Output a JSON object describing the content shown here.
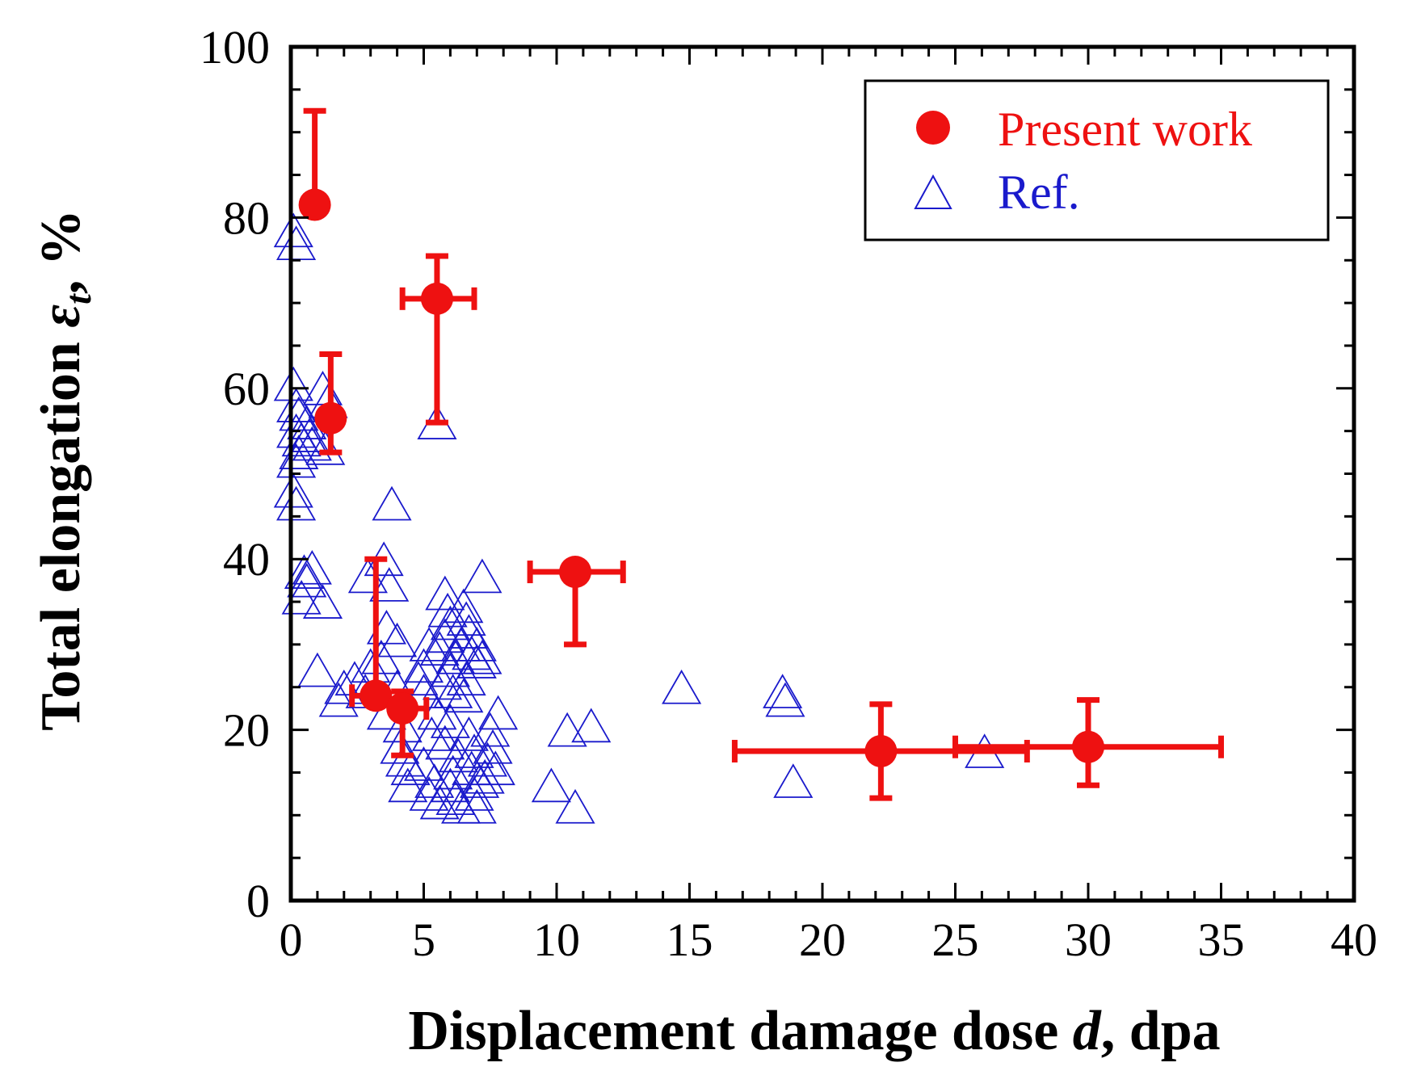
{
  "chart_data": {
    "type": "scatter",
    "xlabel": "Displacement damage dose d, dpa",
    "xlabel_parts": {
      "prefix": "Displacement damage dose ",
      "var": "d",
      "suffix": ", dpa"
    },
    "ylabel": "Total elongation εt, %",
    "ylabel_parts": {
      "prefix": "Total elongation ",
      "var": "ε",
      "sub": "t",
      "suffix": ", %"
    },
    "xlim": [
      0,
      40
    ],
    "ylim": [
      0,
      100
    ],
    "xticks": [
      "0",
      "5",
      "10",
      "15",
      "20",
      "25",
      "30",
      "35",
      "40"
    ],
    "yticks": [
      "0",
      "20",
      "40",
      "60",
      "80",
      "100"
    ],
    "legend_position": "top-right",
    "colors": {
      "present": "#ee1111",
      "ref": "#1a1acc",
      "axis": "#000000"
    },
    "series": [
      {
        "name": "Present work",
        "marker": "filled-circle",
        "color": "#ee1111",
        "points": [
          {
            "x": 0.9,
            "y": 81.5,
            "y_lo": null,
            "y_hi": 92.5,
            "x_lo": null,
            "x_hi": null
          },
          {
            "x": 1.5,
            "y": 56.5,
            "y_lo": 52.5,
            "y_hi": 64.0,
            "x_lo": null,
            "x_hi": null
          },
          {
            "x": 5.5,
            "y": 70.5,
            "y_lo": 56.0,
            "y_hi": 75.5,
            "x_lo": 4.2,
            "x_hi": 6.9
          },
          {
            "x": 10.7,
            "y": 38.5,
            "y_lo": 30.0,
            "y_hi": null,
            "x_lo": 9.0,
            "x_hi": 12.5
          },
          {
            "x": 3.2,
            "y": 24.0,
            "y_lo": null,
            "y_hi": 40.0,
            "x_lo": 2.3,
            "x_hi": null
          },
          {
            "x": 4.2,
            "y": 22.5,
            "y_lo": 17.0,
            "y_hi": 24.5,
            "x_lo": null,
            "x_hi": 5.1
          },
          {
            "x": 22.2,
            "y": 17.5,
            "y_lo": 12.0,
            "y_hi": 23.0,
            "x_lo": 16.7,
            "x_hi": 27.7
          },
          {
            "x": 30.0,
            "y": 18.0,
            "y_lo": 13.5,
            "y_hi": 23.5,
            "x_lo": 25.0,
            "x_hi": 35.0
          }
        ]
      },
      {
        "name": "Ref.",
        "marker": "open-triangle",
        "color": "#1a1acc",
        "points": [
          [
            0.1,
            78.5
          ],
          [
            0.2,
            77.0
          ],
          [
            0.1,
            60.5
          ],
          [
            0.2,
            58.0
          ],
          [
            0.3,
            57.0
          ],
          [
            0.2,
            55.0
          ],
          [
            0.4,
            54.0
          ],
          [
            0.3,
            52.5
          ],
          [
            0.2,
            51.5
          ],
          [
            0.1,
            48.0
          ],
          [
            0.2,
            46.5
          ],
          [
            0.6,
            56.0
          ],
          [
            0.7,
            54.5
          ],
          [
            0.8,
            53.5
          ],
          [
            1.2,
            60.0
          ],
          [
            1.4,
            58.5
          ],
          [
            1.3,
            53.0
          ],
          [
            0.5,
            38.5
          ],
          [
            0.6,
            37.5
          ],
          [
            0.8,
            39.0
          ],
          [
            0.4,
            35.5
          ],
          [
            1.2,
            35.0
          ],
          [
            1.0,
            27.0
          ],
          [
            1.8,
            23.5
          ],
          [
            2.0,
            25.0
          ],
          [
            2.4,
            26.0
          ],
          [
            2.8,
            24.5
          ],
          [
            3.0,
            27.5
          ],
          [
            2.9,
            38.0
          ],
          [
            3.8,
            46.5
          ],
          [
            3.5,
            40.0
          ],
          [
            3.7,
            37.0
          ],
          [
            3.6,
            32.0
          ],
          [
            4.0,
            30.5
          ],
          [
            3.4,
            28.5
          ],
          [
            4.0,
            25.0
          ],
          [
            3.6,
            22.0
          ],
          [
            4.2,
            20.5
          ],
          [
            4.1,
            18.0
          ],
          [
            4.3,
            16.5
          ],
          [
            4.5,
            15.5
          ],
          [
            4.4,
            13.5
          ],
          [
            4.8,
            26.0
          ],
          [
            5.0,
            27.5
          ],
          [
            5.2,
            30.0
          ],
          [
            5.0,
            24.5
          ],
          [
            5.5,
            22.0
          ],
          [
            5.3,
            19.5
          ],
          [
            5.0,
            16.0
          ],
          [
            5.4,
            14.0
          ],
          [
            5.2,
            12.5
          ],
          [
            5.6,
            11.5
          ],
          [
            5.5,
            56.0
          ],
          [
            5.8,
            36.0
          ],
          [
            5.9,
            34.0
          ],
          [
            6.0,
            32.5
          ],
          [
            5.8,
            31.0
          ],
          [
            5.6,
            29.5
          ],
          [
            6.2,
            28.5
          ],
          [
            6.0,
            27.0
          ],
          [
            5.7,
            25.5
          ],
          [
            6.1,
            24.5
          ],
          [
            6.0,
            21.0
          ],
          [
            5.8,
            18.5
          ],
          [
            6.3,
            17.0
          ],
          [
            6.1,
            15.0
          ],
          [
            6.0,
            13.5
          ],
          [
            6.2,
            12.0
          ],
          [
            6.4,
            11.0
          ],
          [
            6.5,
            34.5
          ],
          [
            6.6,
            33.0
          ],
          [
            6.7,
            31.5
          ],
          [
            6.4,
            30.0
          ],
          [
            6.8,
            29.0
          ],
          [
            7.0,
            28.0
          ],
          [
            6.6,
            26.0
          ],
          [
            6.5,
            24.0
          ],
          [
            7.2,
            38.0
          ],
          [
            7.0,
            30.0
          ],
          [
            7.2,
            28.5
          ],
          [
            6.7,
            19.5
          ],
          [
            6.9,
            17.5
          ],
          [
            6.8,
            15.5
          ],
          [
            7.1,
            14.0
          ],
          [
            6.9,
            12.5
          ],
          [
            7.0,
            11.0
          ],
          [
            7.4,
            16.5
          ],
          [
            7.6,
            18.0
          ],
          [
            7.8,
            22.0
          ],
          [
            7.5,
            20.0
          ],
          [
            7.3,
            14.5
          ],
          [
            7.7,
            15.5
          ],
          [
            9.8,
            13.5
          ],
          [
            10.4,
            20.0
          ],
          [
            10.7,
            11.0
          ],
          [
            11.3,
            20.5
          ],
          [
            14.7,
            25.0
          ],
          [
            18.5,
            24.5
          ],
          [
            18.6,
            23.5
          ],
          [
            18.9,
            14.0
          ],
          [
            26.1,
            17.5
          ]
        ]
      }
    ]
  }
}
